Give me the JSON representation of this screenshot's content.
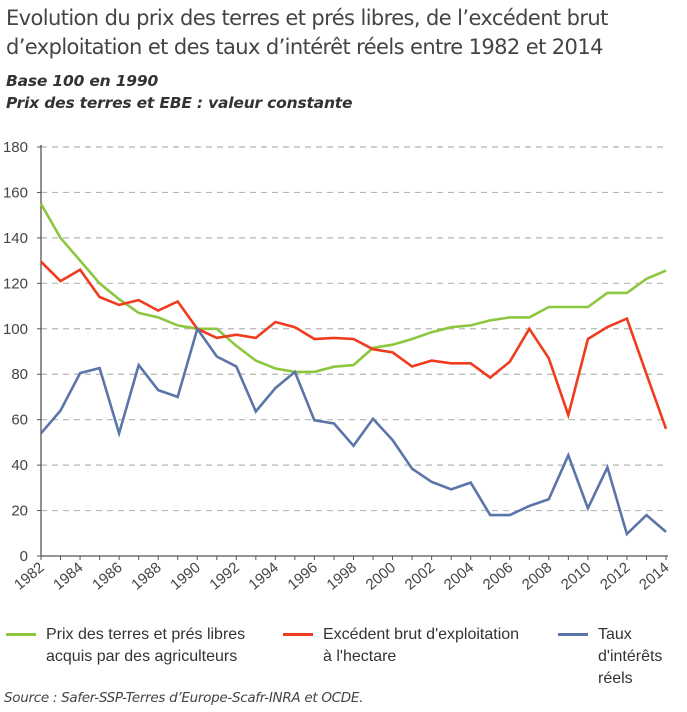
{
  "header": {
    "title_line1": "Evolution du prix des terres et prés libres, de l’excédent brut",
    "title_line2": "d’exploitation et des taux d’intérêt réels entre 1982 et 2014",
    "subtitle1": "Base 100 en 1990",
    "subtitle2": "Prix des terres et EBE : valeur constante"
  },
  "source": "Source : Safer-SSP-Terres d’Europe-Scafr-INRA et OCDE.",
  "colors": {
    "green": "#8dc63f",
    "red": "#f03c1e",
    "blue": "#5b75a8",
    "grid": "#b5b5b5",
    "axis": "#555555"
  },
  "chart_data": {
    "type": "line",
    "title": "Evolution du prix des terres et prés libres, de l’excédent brut d’exploitation et des taux d’intérêt réels entre 1982 et 2014",
    "xlabel": "",
    "ylabel": "",
    "ylim": [
      0,
      180
    ],
    "yticks": [
      0,
      20,
      40,
      60,
      80,
      100,
      120,
      140,
      160,
      180
    ],
    "grid": true,
    "legend_position": "bottom",
    "x": [
      1982,
      1983,
      1984,
      1985,
      1986,
      1987,
      1988,
      1989,
      1990,
      1991,
      1992,
      1993,
      1994,
      1995,
      1996,
      1997,
      1998,
      1999,
      2000,
      2001,
      2002,
      2003,
      2004,
      2005,
      2006,
      2007,
      2008,
      2009,
      2010,
      2011,
      2012,
      2013,
      2014
    ],
    "xtick_labels": [
      "1982",
      "1984",
      "1986",
      "1988",
      "1990",
      "1992",
      "1994",
      "1996",
      "1998",
      "2000",
      "2002",
      "2004",
      "2006",
      "2008",
      "2010",
      "2012",
      "2014"
    ],
    "series": [
      {
        "name": "Prix des terres et prés libres acquis par des agriculteurs",
        "legend_lines": [
          "Prix des terres et prés libres",
          "acquis par des agriculteurs"
        ],
        "color": "#8dc63f",
        "values": [
          155,
          140,
          130,
          120,
          113,
          107,
          105,
          101.5,
          100,
          100,
          92.5,
          86,
          82.5,
          81,
          81,
          83.3,
          84,
          91.6,
          93,
          95.5,
          98.5,
          100.7,
          101.5,
          103.7,
          105,
          105,
          109.6,
          109.6,
          109.6,
          115.8,
          115.8,
          122,
          125.6
        ]
      },
      {
        "name": "Excédent brut d'exploitation à l'hectare",
        "legend_lines": [
          "Excédent brut d'exploitation",
          "à l'hectare"
        ],
        "color": "#f03c1e",
        "values": [
          129.5,
          121,
          126,
          114,
          110.5,
          112.6,
          108,
          112,
          100,
          96,
          97.4,
          96,
          103,
          100.7,
          95.5,
          96,
          95.5,
          91,
          89.6,
          83.4,
          86,
          84.8,
          84.8,
          78.5,
          85.5,
          100,
          87,
          62,
          95.5,
          100.8,
          104.5,
          80,
          56
        ]
      },
      {
        "name": "Taux d'intérêts réels",
        "legend_lines": [
          "Taux",
          "d'intérêts",
          "réels"
        ],
        "color": "#5b75a8",
        "values": [
          54,
          64,
          80.5,
          82.7,
          54,
          84,
          73,
          70,
          100,
          87.8,
          83.4,
          63.6,
          73.9,
          81,
          59.7,
          58.3,
          48.5,
          60.4,
          51,
          38.4,
          32.6,
          29.3,
          32.3,
          18,
          18,
          22,
          25,
          44.3,
          21,
          39,
          9.7,
          18,
          10.6
        ]
      }
    ]
  }
}
